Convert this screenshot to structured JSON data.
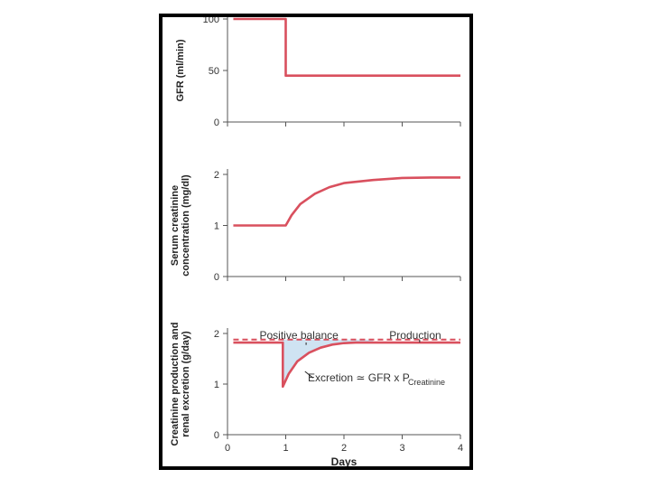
{
  "chart_data": [
    {
      "type": "line",
      "ylabel": "GFR (ml/min)",
      "xlim": [
        0,
        4
      ],
      "ylim": [
        0,
        100
      ],
      "yticks": [
        "0",
        "50",
        "100"
      ],
      "series": [
        {
          "name": "GFR",
          "color": "#d9505e",
          "x": [
            0.1,
            1.0,
            1.0,
            4.0
          ],
          "y": [
            100,
            100,
            45,
            45
          ]
        }
      ]
    },
    {
      "type": "line",
      "ylabel_lines": [
        "Serum creatinine",
        "concentration (mg/dl)"
      ],
      "xlim": [
        0,
        4
      ],
      "ylim": [
        0,
        2
      ],
      "yticks": [
        "0",
        "1",
        "2"
      ],
      "series": [
        {
          "name": "Serum creatinine",
          "color": "#d9505e",
          "x": [
            0.1,
            1.0,
            1.1,
            1.25,
            1.5,
            1.75,
            2.0,
            2.5,
            3.0,
            3.5,
            4.0
          ],
          "y": [
            1.0,
            1.0,
            1.2,
            1.42,
            1.62,
            1.75,
            1.83,
            1.89,
            1.93,
            1.94,
            1.94
          ]
        }
      ]
    },
    {
      "type": "line",
      "ylabel_lines": [
        "Creatinine production and",
        "renal excretion (g/day)"
      ],
      "xlabel": "Days",
      "xlim": [
        0,
        4
      ],
      "ylim": [
        0,
        2
      ],
      "yticks": [
        "0",
        "1",
        "2"
      ],
      "xticks": [
        "0",
        "1",
        "2",
        "3",
        "4"
      ],
      "series": [
        {
          "name": "Production",
          "color": "#d9505e",
          "dashed": true,
          "x": [
            0.1,
            4.0
          ],
          "y": [
            1.88,
            1.88
          ]
        },
        {
          "name": "Excretion",
          "color": "#d9505e",
          "x": [
            0.1,
            0.95,
            0.95,
            1.05,
            1.2,
            1.4,
            1.6,
            1.8,
            2.0,
            2.2,
            2.5,
            4.0
          ],
          "y": [
            1.82,
            1.82,
            0.95,
            1.2,
            1.45,
            1.62,
            1.72,
            1.78,
            1.81,
            1.82,
            1.82,
            1.82
          ]
        }
      ],
      "annotations": {
        "positive_balance": "Positive balance",
        "production": "Production",
        "excretion": "Excretion ≃ GFR x P",
        "excretion_sub": "Creatinine"
      },
      "fill_color": "#cfe3f2"
    }
  ]
}
